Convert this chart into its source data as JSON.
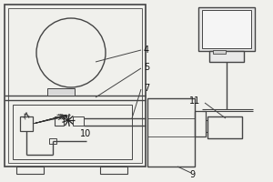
{
  "bg_color": "#f0f0ec",
  "line_color": "#444444",
  "label_color": "#111111",
  "label_fontsize": 7.0
}
